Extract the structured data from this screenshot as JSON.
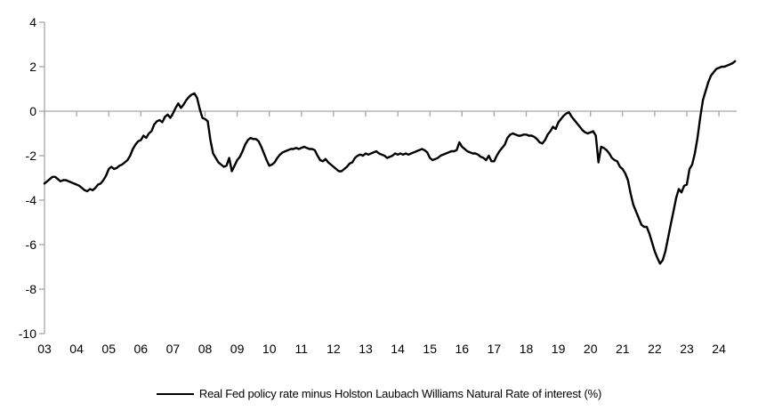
{
  "chart_data": {
    "type": "line",
    "title": "",
    "xlabel": "",
    "ylabel": "",
    "legend_position": "bottom",
    "grid": false,
    "zero_line": true,
    "colors": {
      "axis": "#a6a6a6",
      "line": "#000000",
      "background": "#ffffff"
    },
    "x_axis": {
      "tick_labels": [
        "03",
        "04",
        "05",
        "06",
        "07",
        "08",
        "09",
        "10",
        "11",
        "12",
        "13",
        "14",
        "15",
        "16",
        "17",
        "18",
        "19",
        "20",
        "21",
        "22",
        "23",
        "24"
      ],
      "unit": "year"
    },
    "y_axis": {
      "ticks": [
        4,
        2,
        0,
        -2,
        -4,
        -6,
        -8,
        -10
      ],
      "min": -10,
      "max": 4
    },
    "series": [
      {
        "name": "Real Fed policy rate minus Holston Laubach Williams Natural Rate of interest (%)",
        "color": "#000000",
        "frequency": "monthly",
        "start_year": 2003,
        "start_month": 1,
        "values": [
          -3.25,
          -3.15,
          -3.05,
          -2.95,
          -2.95,
          -3.05,
          -3.15,
          -3.1,
          -3.1,
          -3.15,
          -3.2,
          -3.25,
          -3.3,
          -3.35,
          -3.45,
          -3.55,
          -3.6,
          -3.5,
          -3.55,
          -3.45,
          -3.3,
          -3.25,
          -3.1,
          -2.9,
          -2.6,
          -2.5,
          -2.6,
          -2.55,
          -2.45,
          -2.4,
          -2.3,
          -2.2,
          -2.0,
          -1.7,
          -1.5,
          -1.35,
          -1.3,
          -1.1,
          -1.2,
          -1.0,
          -0.9,
          -0.6,
          -0.45,
          -0.4,
          -0.5,
          -0.25,
          -0.15,
          -0.3,
          -0.1,
          0.15,
          0.35,
          0.15,
          0.3,
          0.5,
          0.65,
          0.75,
          0.8,
          0.6,
          0.1,
          -0.3,
          -0.35,
          -0.45,
          -1.3,
          -1.9,
          -2.1,
          -2.3,
          -2.4,
          -2.5,
          -2.45,
          -2.1,
          -2.7,
          -2.45,
          -2.2,
          -2.05,
          -1.8,
          -1.5,
          -1.3,
          -1.2,
          -1.25,
          -1.25,
          -1.35,
          -1.6,
          -1.9,
          -2.2,
          -2.45,
          -2.4,
          -2.3,
          -2.1,
          -1.95,
          -1.85,
          -1.8,
          -1.75,
          -1.7,
          -1.7,
          -1.65,
          -1.7,
          -1.65,
          -1.6,
          -1.65,
          -1.7,
          -1.7,
          -1.75,
          -2.0,
          -2.2,
          -2.25,
          -2.15,
          -2.3,
          -2.4,
          -2.5,
          -2.6,
          -2.7,
          -2.7,
          -2.6,
          -2.5,
          -2.35,
          -2.3,
          -2.1,
          -2.0,
          -1.95,
          -2.0,
          -1.9,
          -1.95,
          -1.9,
          -1.85,
          -1.8,
          -1.9,
          -1.95,
          -2.0,
          -2.1,
          -2.05,
          -2.0,
          -1.9,
          -1.95,
          -1.9,
          -1.95,
          -1.9,
          -1.95,
          -1.9,
          -1.85,
          -1.8,
          -1.75,
          -1.7,
          -1.75,
          -1.85,
          -2.1,
          -2.2,
          -2.15,
          -2.1,
          -2.0,
          -1.95,
          -1.9,
          -1.85,
          -1.8,
          -1.8,
          -1.75,
          -1.4,
          -1.6,
          -1.7,
          -1.8,
          -1.85,
          -1.9,
          -1.9,
          -1.95,
          -2.05,
          -2.1,
          -2.2,
          -2.0,
          -2.25,
          -2.25,
          -2.0,
          -1.8,
          -1.65,
          -1.5,
          -1.2,
          -1.05,
          -1.0,
          -1.05,
          -1.1,
          -1.1,
          -1.05,
          -1.05,
          -1.1,
          -1.1,
          -1.15,
          -1.25,
          -1.4,
          -1.45,
          -1.3,
          -1.05,
          -0.9,
          -0.7,
          -0.8,
          -0.5,
          -0.35,
          -0.2,
          -0.1,
          -0.05,
          -0.25,
          -0.4,
          -0.55,
          -0.7,
          -0.85,
          -0.95,
          -1.0,
          -0.95,
          -0.9,
          -1.1,
          -2.3,
          -1.6,
          -1.65,
          -1.75,
          -1.9,
          -2.1,
          -2.2,
          -2.25,
          -2.5,
          -2.6,
          -2.8,
          -3.1,
          -3.7,
          -4.2,
          -4.5,
          -4.8,
          -5.1,
          -5.2,
          -5.2,
          -5.5,
          -5.9,
          -6.3,
          -6.6,
          -6.85,
          -6.7,
          -6.3,
          -5.7,
          -5.1,
          -4.5,
          -3.9,
          -3.5,
          -3.65,
          -3.35,
          -3.3,
          -2.6,
          -2.4,
          -1.9,
          -1.2,
          -0.3,
          0.5,
          0.9,
          1.3,
          1.6,
          1.75,
          1.9,
          1.95,
          2.0,
          2.0,
          2.05,
          2.1,
          2.15,
          2.25
        ]
      }
    ]
  }
}
